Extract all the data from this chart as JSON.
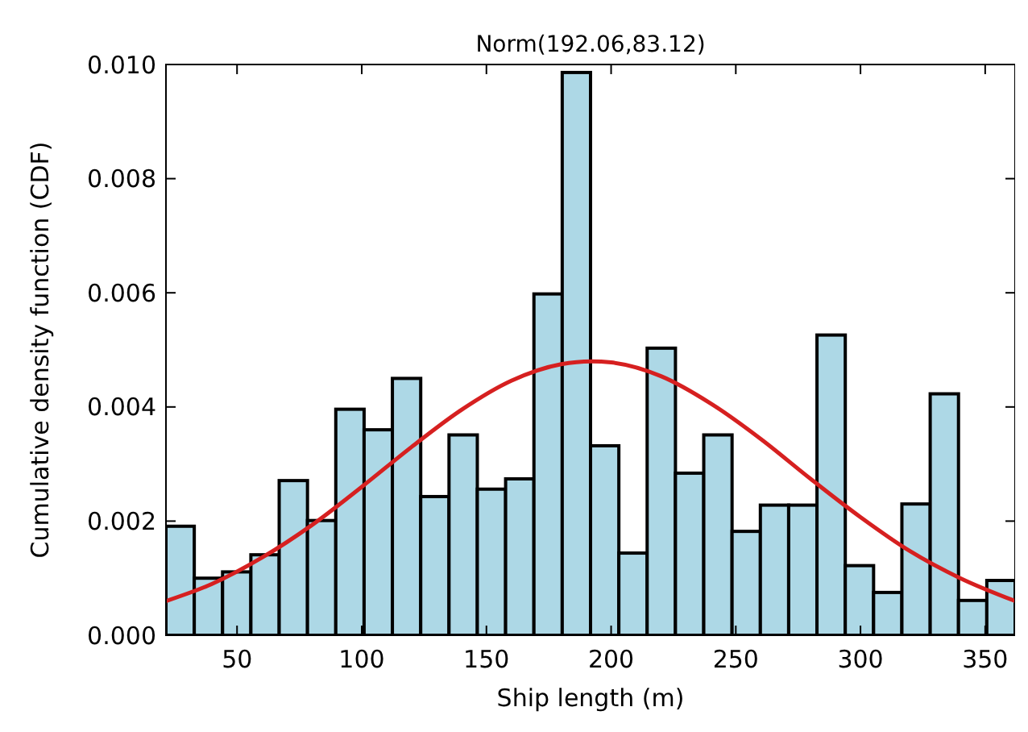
{
  "chart_data": {
    "type": "histogram",
    "title": "Norm(192.06,83.12)",
    "xlabel": "Ship length (m)",
    "ylabel": "Cumulative density function (CDF)",
    "bins": [
      21.5,
      32.85,
      44.2,
      55.55,
      66.9,
      78.25,
      89.6,
      100.95,
      112.3,
      123.65,
      135,
      146.35,
      157.7,
      169.05,
      180.4,
      191.75,
      203.1,
      214.45,
      225.8,
      237.15,
      248.5,
      259.85,
      271.2,
      282.55,
      293.9,
      305.25,
      316.6,
      327.95,
      339.3,
      350.65,
      362
    ],
    "values": [
      0.00191,
      0.001,
      0.00111,
      0.00141,
      0.00271,
      0.00201,
      0.00396,
      0.0036,
      0.0045,
      0.00243,
      0.00351,
      0.00256,
      0.00274,
      0.00598,
      0.00986,
      0.00332,
      0.00144,
      0.00503,
      0.00284,
      0.00351,
      0.00182,
      0.00228,
      0.00228,
      0.00526,
      0.00122,
      0.00075,
      0.0023,
      0.00423,
      0.00061,
      0.00096
    ],
    "color": "#add8e6",
    "series": [
      {
        "type": "line",
        "color": "#d62020",
        "x": [
          21.5,
          40,
          60,
          80,
          100,
          120,
          140,
          160,
          180,
          192.06,
          200,
          220,
          240,
          260,
          280,
          300,
          320,
          340,
          362
        ],
        "values": [
          0.0006,
          0.0009,
          0.00136,
          0.00193,
          0.0026,
          0.0033,
          0.00395,
          0.00446,
          0.00475,
          0.0048,
          0.00478,
          0.00454,
          0.00406,
          0.00344,
          0.00274,
          0.00207,
          0.00147,
          0.001,
          0.0006
        ]
      }
    ],
    "xlim": [
      21.5,
      362
    ],
    "xticks": [
      50,
      100,
      150,
      200,
      250,
      300,
      350
    ],
    "ylim": [
      0,
      0.01
    ],
    "yticks": [
      {
        "value": 0,
        "label": "0.000"
      },
      {
        "value": 0.002,
        "label": "0.002"
      },
      {
        "value": 0.004,
        "label": "0.004"
      },
      {
        "value": 0.006,
        "label": "0.006"
      },
      {
        "value": 0.008,
        "label": "0.008"
      },
      {
        "value": 0.01,
        "label": "0.010"
      }
    ],
    "grid": false
  }
}
